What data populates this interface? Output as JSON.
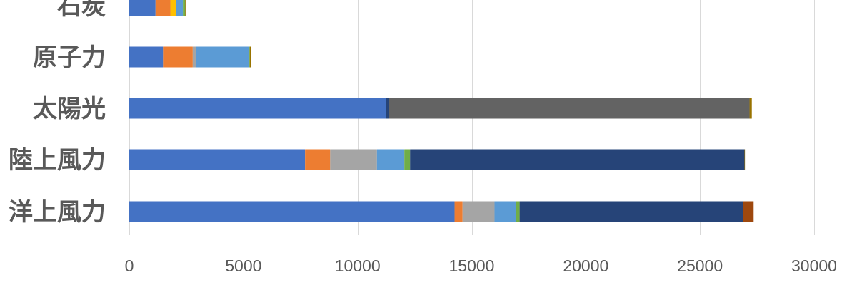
{
  "chart_data": {
    "type": "bar",
    "orientation": "horizontal",
    "stacked": true,
    "categories": [
      "石炭",
      "原子力",
      "太陽光",
      "陸上風力",
      "洋上風力"
    ],
    "xlim": [
      0,
      30000
    ],
    "x_ticks": [
      "0",
      "5000",
      "10000",
      "15000",
      "20000",
      "25000",
      "30000"
    ],
    "grid": true,
    "series": [
      {
        "color": "#4472c4",
        "values": [
          1150,
          1480,
          11250,
          7700,
          14250
        ]
      },
      {
        "color": "#ed7d31",
        "values": [
          650,
          1300,
          0,
          1100,
          350
        ]
      },
      {
        "color": "#a5a5a5",
        "values": [
          0,
          150,
          0,
          2050,
          1400
        ]
      },
      {
        "color": "#ffc000",
        "values": [
          250,
          0,
          0,
          0,
          0
        ]
      },
      {
        "color": "#5b9bd5",
        "values": [
          300,
          2300,
          0,
          1200,
          950
        ]
      },
      {
        "color": "#70ad47",
        "values": [
          100,
          50,
          0,
          250,
          150
        ]
      },
      {
        "color": "#264478",
        "values": [
          0,
          0,
          120,
          14650,
          9800
        ]
      },
      {
        "color": "#636363",
        "values": [
          0,
          0,
          15800,
          0,
          0
        ]
      },
      {
        "color": "#997300",
        "values": [
          30,
          50,
          100,
          20,
          0
        ]
      },
      {
        "color": "#9e480e",
        "values": [
          0,
          0,
          0,
          0,
          450
        ]
      }
    ]
  }
}
